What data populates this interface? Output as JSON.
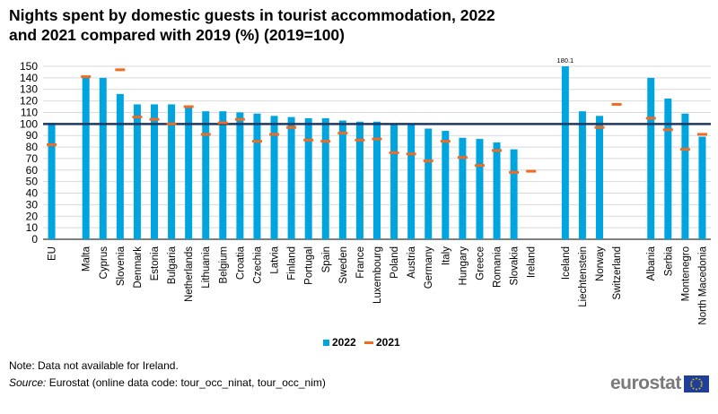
{
  "title": "Nights spent by domestic guests in tourist accommodation, 2022 and 2021 compared with 2019 (%) (2019=100)",
  "note": "Note: Data not available for Ireland.",
  "source_label": "Source:",
  "source_text": " Eurostat (online data code: tour_occ_ninat, tour_occ_nim)",
  "logo_text": "eurostat",
  "colors": {
    "bar_2022": "#00A5DF",
    "marker_2021": "#F06C22",
    "reference_line": "#1F3864",
    "grid": "#D9D9D9"
  },
  "chart_data": {
    "type": "bar",
    "categories": [
      "EU",
      "",
      "Malta",
      "Cyprus",
      "Slovenia",
      "Denmark",
      "Estonia",
      "Bulgaria",
      "Netherlands",
      "Lithuania",
      "Belgium",
      "Croatia",
      "Czechia",
      "Latvia",
      "Finland",
      "Portugal",
      "Spain",
      "Sweden",
      "France",
      "Luxembourg",
      "Poland",
      "Austria",
      "Germany",
      "Italy",
      "Hungary",
      "Greece",
      "Romania",
      "Slovakia",
      "Ireland",
      "",
      "Iceland",
      "Liechtenstein",
      "Norway",
      "Switzerland",
      "",
      "Albania",
      "Serbia",
      "Montenegro",
      "North Macedonia"
    ],
    "series": [
      {
        "name": "2022",
        "type": "bar",
        "values": [
          101,
          null,
          141,
          140,
          126,
          117,
          117,
          117,
          115,
          111,
          111,
          110,
          109,
          107,
          106,
          105,
          105,
          103,
          102,
          102,
          100,
          100,
          96,
          94,
          88,
          87,
          84,
          78,
          null,
          null,
          150,
          111,
          107,
          null,
          null,
          140,
          122,
          109,
          89
        ]
      },
      {
        "name": "2021",
        "type": "marker",
        "values": [
          82,
          null,
          141,
          null,
          147,
          106,
          104,
          100,
          115,
          91,
          101,
          104,
          85,
          91,
          97,
          86,
          85,
          92,
          86,
          87,
          75,
          74,
          68,
          85,
          71,
          64,
          77,
          58,
          59,
          null,
          null,
          null,
          97,
          117,
          null,
          105,
          95,
          78,
          91
        ]
      }
    ],
    "reference_line": 100,
    "data_labels": [
      {
        "category": "Iceland",
        "text": "180.1"
      }
    ],
    "ylim": [
      0,
      150
    ],
    "yticks": [
      0,
      10,
      20,
      30,
      40,
      50,
      60,
      70,
      80,
      90,
      100,
      110,
      120,
      130,
      140,
      150
    ],
    "grid": true,
    "legend_position": "bottom"
  }
}
